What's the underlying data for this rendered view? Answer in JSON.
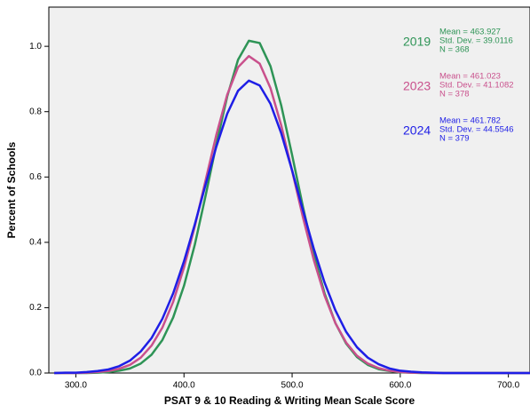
{
  "chart_data": {
    "type": "line",
    "x_label": "PSAT 9 & 10 Reading & Writing Mean Scale Score",
    "y_label": "Percent of Schools",
    "x": [
      280,
      290,
      300,
      310,
      320,
      330,
      340,
      350,
      360,
      370,
      380,
      390,
      400,
      410,
      420,
      430,
      440,
      450,
      460,
      470,
      480,
      490,
      500,
      510,
      520,
      530,
      540,
      550,
      560,
      570,
      580,
      590,
      600,
      610,
      620,
      630,
      640,
      650,
      660,
      670,
      680,
      690,
      700,
      710,
      720
    ],
    "series": [
      {
        "name": "2019",
        "color": "#2e9456",
        "stats": [
          "Mean = 463.927",
          "Std. Dev. = 39.0116",
          "N = 368"
        ],
        "values": [
          0,
          0,
          0,
          0,
          0.001,
          0.003,
          0.007,
          0.014,
          0.029,
          0.056,
          0.101,
          0.17,
          0.267,
          0.393,
          0.543,
          0.701,
          0.847,
          0.959,
          1.017,
          1.01,
          0.939,
          0.818,
          0.667,
          0.509,
          0.364,
          0.244,
          0.153,
          0.09,
          0.049,
          0.025,
          0.012,
          0.006,
          0.002,
          0.001,
          0,
          0,
          0,
          0,
          0,
          0,
          0,
          0,
          0,
          0,
          0
        ]
      },
      {
        "name": "2023",
        "color": "#c9508c",
        "stats": [
          "Mean = 461.023",
          "Std. Dev. = 41.1082",
          "N = 378"
        ],
        "values": [
          0,
          0,
          0,
          0.001,
          0.003,
          0.006,
          0.013,
          0.025,
          0.047,
          0.084,
          0.139,
          0.218,
          0.323,
          0.449,
          0.59,
          0.73,
          0.852,
          0.936,
          0.97,
          0.947,
          0.872,
          0.757,
          0.619,
          0.477,
          0.347,
          0.237,
          0.153,
          0.093,
          0.053,
          0.029,
          0.015,
          0.007,
          0.003,
          0.001,
          0.001,
          0,
          0,
          0,
          0,
          0,
          0,
          0,
          0,
          0,
          0
        ]
      },
      {
        "name": "2024",
        "color": "#1e1ee6",
        "stats": [
          "Mean = 461.782",
          "Std. Dev. = 44.5546",
          "N = 379"
        ],
        "values": [
          0,
          0.001,
          0.001,
          0.003,
          0.006,
          0.011,
          0.021,
          0.038,
          0.066,
          0.107,
          0.166,
          0.244,
          0.342,
          0.455,
          0.577,
          0.694,
          0.794,
          0.864,
          0.895,
          0.88,
          0.824,
          0.733,
          0.62,
          0.498,
          0.381,
          0.277,
          0.192,
          0.126,
          0.079,
          0.047,
          0.027,
          0.014,
          0.007,
          0.004,
          0.002,
          0.001,
          0,
          0,
          0,
          0,
          0,
          0,
          0,
          0,
          0
        ]
      }
    ],
    "xlim": [
      275,
      720
    ],
    "xticks": [
      {
        "value": 300,
        "label": "300.0"
      },
      {
        "value": 400,
        "label": "400.0"
      },
      {
        "value": 500,
        "label": "500.0"
      },
      {
        "value": 600,
        "label": "600.0"
      },
      {
        "value": 700,
        "label": "700.0"
      }
    ],
    "ylim": [
      0,
      1.12
    ],
    "yticks": [
      {
        "value": 0,
        "label": "0.0"
      },
      {
        "value": 0.2,
        "label": "0.2"
      },
      {
        "value": 0.4,
        "label": "0.4"
      },
      {
        "value": 0.6,
        "label": "0.6"
      },
      {
        "value": 0.8,
        "label": "0.8"
      },
      {
        "value": 1.0,
        "label": "1.0"
      }
    ],
    "background": "#f0f0f0"
  }
}
